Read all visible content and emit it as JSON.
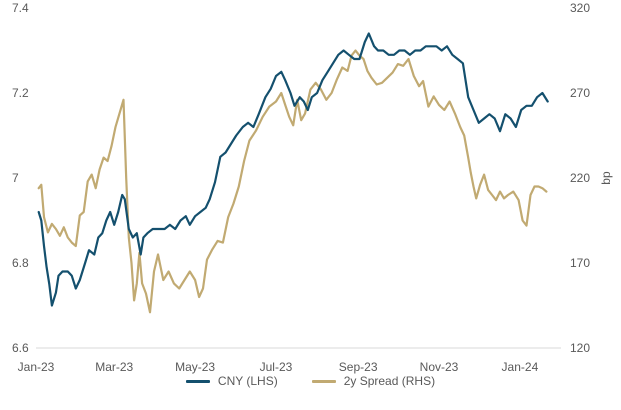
{
  "chart_data": {
    "type": "line",
    "title": "",
    "x_labels": [
      "Jan-23",
      "Mar-23",
      "May-23",
      "Jul-23",
      "Sep-23",
      "Nov-23",
      "Jan-24"
    ],
    "ylim_left": [
      6.6,
      7.4
    ],
    "ylim_right": [
      120,
      320
    ],
    "y_ticks_left": [
      "6.6",
      "6.8",
      "7",
      "7.2",
      "7.4"
    ],
    "y_ticks_right": [
      "120",
      "170",
      "220",
      "270",
      "320"
    ],
    "ylabel_right": "bp",
    "legend_position": "bottom",
    "grid": false,
    "series": [
      {
        "name": "CNY (LHS)",
        "axis": "left",
        "color": "#14506e",
        "points": [
          [
            "2023-01-03",
            6.92
          ],
          [
            "2023-01-05",
            6.9
          ],
          [
            "2023-01-07",
            6.84
          ],
          [
            "2023-01-09",
            6.79
          ],
          [
            "2023-01-11",
            6.75
          ],
          [
            "2023-01-13",
            6.7
          ],
          [
            "2023-01-16",
            6.73
          ],
          [
            "2023-01-18",
            6.77
          ],
          [
            "2023-01-21",
            6.78
          ],
          [
            "2023-01-25",
            6.78
          ],
          [
            "2023-01-28",
            6.77
          ],
          [
            "2023-01-31",
            6.74
          ],
          [
            "2023-02-03",
            6.76
          ],
          [
            "2023-02-07",
            6.8
          ],
          [
            "2023-02-10",
            6.83
          ],
          [
            "2023-02-14",
            6.82
          ],
          [
            "2023-02-17",
            6.86
          ],
          [
            "2023-02-20",
            6.87
          ],
          [
            "2023-02-23",
            6.9
          ],
          [
            "2023-02-26",
            6.92
          ],
          [
            "2023-03-01",
            6.89
          ],
          [
            "2023-03-04",
            6.92
          ],
          [
            "2023-03-07",
            6.96
          ],
          [
            "2023-03-09",
            6.95
          ],
          [
            "2023-03-12",
            6.88
          ],
          [
            "2023-03-15",
            6.86
          ],
          [
            "2023-03-18",
            6.87
          ],
          [
            "2023-03-21",
            6.82
          ],
          [
            "2023-03-23",
            6.86
          ],
          [
            "2023-03-26",
            6.87
          ],
          [
            "2023-03-30",
            6.88
          ],
          [
            "2023-04-04",
            6.88
          ],
          [
            "2023-04-08",
            6.88
          ],
          [
            "2023-04-12",
            6.89
          ],
          [
            "2023-04-16",
            6.88
          ],
          [
            "2023-04-20",
            6.9
          ],
          [
            "2023-04-24",
            6.91
          ],
          [
            "2023-04-27",
            6.89
          ],
          [
            "2023-05-01",
            6.91
          ],
          [
            "2023-05-05",
            6.92
          ],
          [
            "2023-05-09",
            6.93
          ],
          [
            "2023-05-12",
            6.95
          ],
          [
            "2023-05-16",
            6.99
          ],
          [
            "2023-05-20",
            7.05
          ],
          [
            "2023-05-24",
            7.06
          ],
          [
            "2023-05-28",
            7.08
          ],
          [
            "2023-06-01",
            7.1
          ],
          [
            "2023-06-06",
            7.12
          ],
          [
            "2023-06-10",
            7.13
          ],
          [
            "2023-06-14",
            7.12
          ],
          [
            "2023-06-18",
            7.15
          ],
          [
            "2023-06-23",
            7.19
          ],
          [
            "2023-06-27",
            7.21
          ],
          [
            "2023-07-01",
            7.24
          ],
          [
            "2023-07-05",
            7.25
          ],
          [
            "2023-07-08",
            7.23
          ],
          [
            "2023-07-12",
            7.2
          ],
          [
            "2023-07-15",
            7.17
          ],
          [
            "2023-07-19",
            7.19
          ],
          [
            "2023-07-22",
            7.18
          ],
          [
            "2023-07-25",
            7.16
          ],
          [
            "2023-07-28",
            7.19
          ],
          [
            "2023-08-01",
            7.2
          ],
          [
            "2023-08-05",
            7.23
          ],
          [
            "2023-08-09",
            7.25
          ],
          [
            "2023-08-13",
            7.27
          ],
          [
            "2023-08-17",
            7.29
          ],
          [
            "2023-08-21",
            7.3
          ],
          [
            "2023-08-25",
            7.29
          ],
          [
            "2023-08-29",
            7.28
          ],
          [
            "2023-09-02",
            7.28
          ],
          [
            "2023-09-06",
            7.32
          ],
          [
            "2023-09-09",
            7.34
          ],
          [
            "2023-09-13",
            7.31
          ],
          [
            "2023-09-16",
            7.3
          ],
          [
            "2023-09-20",
            7.3
          ],
          [
            "2023-09-24",
            7.29
          ],
          [
            "2023-09-28",
            7.29
          ],
          [
            "2023-10-02",
            7.3
          ],
          [
            "2023-10-06",
            7.3
          ],
          [
            "2023-10-10",
            7.29
          ],
          [
            "2023-10-14",
            7.3
          ],
          [
            "2023-10-18",
            7.3
          ],
          [
            "2023-10-22",
            7.31
          ],
          [
            "2023-10-26",
            7.31
          ],
          [
            "2023-10-30",
            7.31
          ],
          [
            "2023-11-03",
            7.3
          ],
          [
            "2023-11-07",
            7.31
          ],
          [
            "2023-11-11",
            7.29
          ],
          [
            "2023-11-15",
            7.28
          ],
          [
            "2023-11-19",
            7.27
          ],
          [
            "2023-11-23",
            7.19
          ],
          [
            "2023-11-27",
            7.16
          ],
          [
            "2023-12-01",
            7.13
          ],
          [
            "2023-12-05",
            7.14
          ],
          [
            "2023-12-09",
            7.15
          ],
          [
            "2023-12-13",
            7.14
          ],
          [
            "2023-12-17",
            7.11
          ],
          [
            "2023-12-21",
            7.15
          ],
          [
            "2023-12-25",
            7.14
          ],
          [
            "2023-12-29",
            7.12
          ],
          [
            "2024-01-02",
            7.16
          ],
          [
            "2024-01-06",
            7.17
          ],
          [
            "2024-01-10",
            7.17
          ],
          [
            "2024-01-14",
            7.19
          ],
          [
            "2024-01-18",
            7.2
          ],
          [
            "2024-01-22",
            7.18
          ]
        ]
      },
      {
        "name": "2y Spread (RHS)",
        "axis": "right",
        "color": "#c1aa72",
        "points": [
          [
            "2023-01-03",
            214
          ],
          [
            "2023-01-05",
            216
          ],
          [
            "2023-01-07",
            197
          ],
          [
            "2023-01-10",
            188
          ],
          [
            "2023-01-13",
            193
          ],
          [
            "2023-01-16",
            190
          ],
          [
            "2023-01-19",
            186
          ],
          [
            "2023-01-22",
            191
          ],
          [
            "2023-01-25",
            185
          ],
          [
            "2023-01-28",
            182
          ],
          [
            "2023-01-31",
            180
          ],
          [
            "2023-02-03",
            198
          ],
          [
            "2023-02-06",
            200
          ],
          [
            "2023-02-09",
            218
          ],
          [
            "2023-02-12",
            222
          ],
          [
            "2023-02-15",
            214
          ],
          [
            "2023-02-18",
            225
          ],
          [
            "2023-02-21",
            232
          ],
          [
            "2023-02-24",
            230
          ],
          [
            "2023-02-27",
            239
          ],
          [
            "2023-03-02",
            250
          ],
          [
            "2023-03-05",
            258
          ],
          [
            "2023-03-08",
            266
          ],
          [
            "2023-03-10",
            220
          ],
          [
            "2023-03-12",
            185
          ],
          [
            "2023-03-14",
            170
          ],
          [
            "2023-03-16",
            148
          ],
          [
            "2023-03-18",
            158
          ],
          [
            "2023-03-20",
            176
          ],
          [
            "2023-03-22",
            158
          ],
          [
            "2023-03-25",
            152
          ],
          [
            "2023-03-28",
            141
          ],
          [
            "2023-03-31",
            165
          ],
          [
            "2023-04-03",
            175
          ],
          [
            "2023-04-07",
            160
          ],
          [
            "2023-04-11",
            165
          ],
          [
            "2023-04-15",
            158
          ],
          [
            "2023-04-19",
            155
          ],
          [
            "2023-04-23",
            160
          ],
          [
            "2023-04-27",
            165
          ],
          [
            "2023-05-01",
            160
          ],
          [
            "2023-05-04",
            150
          ],
          [
            "2023-05-07",
            155
          ],
          [
            "2023-05-10",
            172
          ],
          [
            "2023-05-14",
            178
          ],
          [
            "2023-05-18",
            183
          ],
          [
            "2023-05-22",
            182
          ],
          [
            "2023-05-26",
            197
          ],
          [
            "2023-05-30",
            205
          ],
          [
            "2023-06-03",
            215
          ],
          [
            "2023-06-07",
            230
          ],
          [
            "2023-06-11",
            242
          ],
          [
            "2023-06-16",
            248
          ],
          [
            "2023-06-21",
            256
          ],
          [
            "2023-06-26",
            262
          ],
          [
            "2023-07-01",
            265
          ],
          [
            "2023-07-05",
            270
          ],
          [
            "2023-07-08",
            263
          ],
          [
            "2023-07-11",
            256
          ],
          [
            "2023-07-14",
            251
          ],
          [
            "2023-07-17",
            266
          ],
          [
            "2023-07-20",
            254
          ],
          [
            "2023-07-23",
            258
          ],
          [
            "2023-07-27",
            272
          ],
          [
            "2023-07-31",
            276
          ],
          [
            "2023-08-04",
            272
          ],
          [
            "2023-08-08",
            266
          ],
          [
            "2023-08-12",
            270
          ],
          [
            "2023-08-16",
            278
          ],
          [
            "2023-08-20",
            285
          ],
          [
            "2023-08-24",
            283
          ],
          [
            "2023-08-27",
            292
          ],
          [
            "2023-08-30",
            295
          ],
          [
            "2023-09-02",
            292
          ],
          [
            "2023-09-05",
            290
          ],
          [
            "2023-09-08",
            283
          ],
          [
            "2023-09-11",
            279
          ],
          [
            "2023-09-15",
            275
          ],
          [
            "2023-09-19",
            276
          ],
          [
            "2023-09-23",
            279
          ],
          [
            "2023-09-27",
            282
          ],
          [
            "2023-10-01",
            287
          ],
          [
            "2023-10-05",
            286
          ],
          [
            "2023-10-09",
            290
          ],
          [
            "2023-10-13",
            280
          ],
          [
            "2023-10-17",
            274
          ],
          [
            "2023-10-20",
            277
          ],
          [
            "2023-10-24",
            262
          ],
          [
            "2023-10-28",
            268
          ],
          [
            "2023-11-01",
            263
          ],
          [
            "2023-11-05",
            260
          ],
          [
            "2023-11-09",
            265
          ],
          [
            "2023-11-13",
            258
          ],
          [
            "2023-11-17",
            250
          ],
          [
            "2023-11-20",
            245
          ],
          [
            "2023-11-23",
            232
          ],
          [
            "2023-11-25",
            223
          ],
          [
            "2023-11-27",
            215
          ],
          [
            "2023-11-29",
            208
          ],
          [
            "2023-12-02",
            216
          ],
          [
            "2023-12-05",
            222
          ],
          [
            "2023-12-08",
            213
          ],
          [
            "2023-12-11",
            210
          ],
          [
            "2023-12-14",
            207
          ],
          [
            "2023-12-17",
            212
          ],
          [
            "2023-12-20",
            208
          ],
          [
            "2023-12-23",
            210
          ],
          [
            "2023-12-27",
            212
          ],
          [
            "2023-12-31",
            207
          ],
          [
            "2024-01-03",
            195
          ],
          [
            "2024-01-06",
            192
          ],
          [
            "2024-01-09",
            210
          ],
          [
            "2024-01-12",
            215
          ],
          [
            "2024-01-15",
            215
          ],
          [
            "2024-01-18",
            214
          ],
          [
            "2024-01-21",
            212
          ]
        ]
      }
    ]
  }
}
